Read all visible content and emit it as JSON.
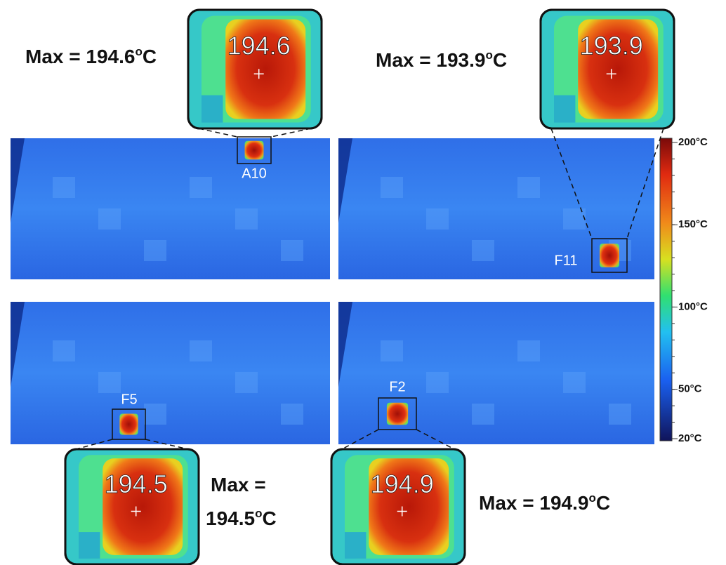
{
  "panels": [
    {
      "label": "A10",
      "value": "194.6",
      "max": [
        {
          "text": "Max = 194.6",
          "sup": "o",
          "unit": "C"
        }
      ]
    },
    {
      "label": "F11",
      "value": "193.9",
      "max": [
        {
          "text": "Max = 193.9",
          "sup": "o",
          "unit": "C"
        }
      ]
    },
    {
      "label": "F5",
      "value": "194.5",
      "max": [
        {
          "text": "Max ="
        },
        {
          "text": "194.5",
          "sup": "o",
          "unit": "C"
        }
      ]
    },
    {
      "label": "F2",
      "value": "194.9",
      "max": [
        {
          "text": "Max = 194.9",
          "sup": "o",
          "unit": "C"
        }
      ]
    }
  ],
  "colorbar": {
    "range": [
      20,
      200
    ],
    "ticks": [
      {
        "value": 200,
        "label": "200°C"
      },
      {
        "value": 150,
        "label": "150°C"
      },
      {
        "value": 100,
        "label": "100°C"
      },
      {
        "value": 50,
        "label": "50°C"
      },
      {
        "value": 20,
        "label": "20°C"
      }
    ]
  }
}
